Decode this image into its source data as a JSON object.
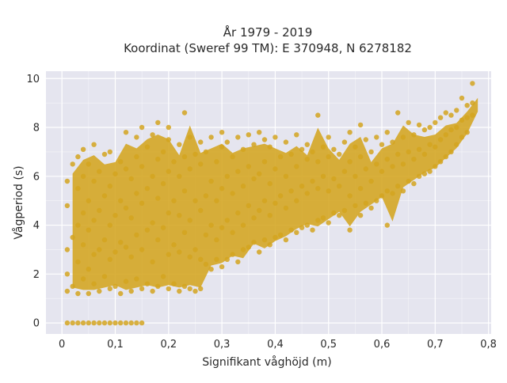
{
  "chart_data": {
    "type": "scatter",
    "title_lines": [
      "År 1979 - 2019",
      "Koordinat (Sweref 99 TM): E 370948, N 6278182"
    ],
    "xlabel": "Signifikant våghöjd (m)",
    "ylabel": "Vågperiod (s)",
    "xlim": [
      -0.03,
      0.805
    ],
    "ylim": [
      -0.45,
      10.3
    ],
    "x_ticks": [
      0,
      0.1,
      0.2,
      0.3,
      0.4,
      0.5,
      0.6,
      0.7,
      0.8
    ],
    "x_tick_labels": [
      "0",
      "0,1",
      "0,2",
      "0,3",
      "0,4",
      "0,5",
      "0,6",
      "0,7",
      "0,8"
    ],
    "y_ticks": [
      0,
      2,
      4,
      6,
      8,
      10
    ],
    "y_tick_labels": [
      "0",
      "2",
      "4",
      "6",
      "8",
      "10"
    ],
    "grid": true,
    "marker_color": "#D4A520",
    "plot_background": "#E5E5EF",
    "points": [
      [
        0.01,
        0.0
      ],
      [
        0.02,
        0.0
      ],
      [
        0.03,
        0.0
      ],
      [
        0.04,
        0.0
      ],
      [
        0.05,
        0.0
      ],
      [
        0.06,
        0.0
      ],
      [
        0.07,
        0.0
      ],
      [
        0.08,
        0.0
      ],
      [
        0.09,
        0.0
      ],
      [
        0.1,
        0.0
      ],
      [
        0.11,
        0.0
      ],
      [
        0.12,
        0.0
      ],
      [
        0.13,
        0.0
      ],
      [
        0.14,
        0.0
      ],
      [
        0.15,
        0.0
      ],
      [
        0.01,
        1.3
      ],
      [
        0.01,
        2.0
      ],
      [
        0.01,
        3.0
      ],
      [
        0.01,
        4.8
      ],
      [
        0.01,
        5.8
      ],
      [
        0.02,
        1.5
      ],
      [
        0.02,
        3.5
      ],
      [
        0.02,
        6.5
      ],
      [
        0.03,
        1.2
      ],
      [
        0.03,
        2.5
      ],
      [
        0.03,
        4.0
      ],
      [
        0.03,
        5.5
      ],
      [
        0.03,
        6.8
      ],
      [
        0.04,
        1.8
      ],
      [
        0.04,
        3.2
      ],
      [
        0.04,
        4.5
      ],
      [
        0.04,
        6.0
      ],
      [
        0.04,
        7.1
      ],
      [
        0.05,
        1.2
      ],
      [
        0.05,
        2.2
      ],
      [
        0.05,
        3.8
      ],
      [
        0.05,
        5.0
      ],
      [
        0.05,
        6.5
      ],
      [
        0.06,
        1.6
      ],
      [
        0.06,
        2.8
      ],
      [
        0.06,
        4.2
      ],
      [
        0.06,
        5.8
      ],
      [
        0.06,
        7.3
      ],
      [
        0.07,
        1.3
      ],
      [
        0.07,
        3.0
      ],
      [
        0.07,
        4.6
      ],
      [
        0.07,
        6.2
      ],
      [
        0.08,
        1.9
      ],
      [
        0.08,
        3.4
      ],
      [
        0.08,
        5.2
      ],
      [
        0.08,
        6.9
      ],
      [
        0.09,
        1.4
      ],
      [
        0.09,
        2.6
      ],
      [
        0.09,
        4.0
      ],
      [
        0.09,
        5.6
      ],
      [
        0.09,
        7.0
      ],
      [
        0.1,
        1.5
      ],
      [
        0.1,
        2.9
      ],
      [
        0.1,
        4.4
      ],
      [
        0.1,
        6.1
      ],
      [
        0.11,
        1.2
      ],
      [
        0.11,
        3.3
      ],
      [
        0.11,
        5.0
      ],
      [
        0.11,
        6.6
      ],
      [
        0.12,
        1.7
      ],
      [
        0.12,
        3.1
      ],
      [
        0.12,
        4.7
      ],
      [
        0.12,
        6.3
      ],
      [
        0.12,
        7.8
      ],
      [
        0.13,
        1.3
      ],
      [
        0.13,
        2.7
      ],
      [
        0.13,
        4.3
      ],
      [
        0.13,
        5.9
      ],
      [
        0.14,
        1.8
      ],
      [
        0.14,
        3.6
      ],
      [
        0.14,
        5.3
      ],
      [
        0.14,
        6.8
      ],
      [
        0.14,
        7.6
      ],
      [
        0.15,
        1.4
      ],
      [
        0.15,
        3.0
      ],
      [
        0.15,
        4.9
      ],
      [
        0.15,
        6.4
      ],
      [
        0.15,
        8.0
      ],
      [
        0.16,
        1.6
      ],
      [
        0.16,
        3.8
      ],
      [
        0.16,
        5.5
      ],
      [
        0.16,
        7.2
      ],
      [
        0.17,
        1.3
      ],
      [
        0.17,
        2.5
      ],
      [
        0.17,
        4.1
      ],
      [
        0.17,
        6.0
      ],
      [
        0.17,
        7.7
      ],
      [
        0.18,
        1.5
      ],
      [
        0.18,
        3.4
      ],
      [
        0.18,
        5.1
      ],
      [
        0.18,
        6.7
      ],
      [
        0.18,
        8.2
      ],
      [
        0.19,
        1.9
      ],
      [
        0.19,
        3.9
      ],
      [
        0.19,
        5.7
      ],
      [
        0.19,
        7.0
      ],
      [
        0.2,
        1.4
      ],
      [
        0.2,
        2.8
      ],
      [
        0.2,
        4.5
      ],
      [
        0.2,
        6.2
      ],
      [
        0.2,
        7.5
      ],
      [
        0.2,
        8.0
      ],
      [
        0.21,
        1.6
      ],
      [
        0.21,
        3.2
      ],
      [
        0.21,
        5.0
      ],
      [
        0.21,
        6.6
      ],
      [
        0.22,
        1.3
      ],
      [
        0.22,
        2.9
      ],
      [
        0.22,
        4.4
      ],
      [
        0.22,
        6.0
      ],
      [
        0.22,
        7.3
      ],
      [
        0.23,
        1.5
      ],
      [
        0.23,
        3.7
      ],
      [
        0.23,
        5.4
      ],
      [
        0.23,
        6.8
      ],
      [
        0.23,
        8.6
      ],
      [
        0.24,
        1.4
      ],
      [
        0.24,
        2.7
      ],
      [
        0.24,
        4.2
      ],
      [
        0.24,
        6.3
      ],
      [
        0.24,
        7.6
      ],
      [
        0.25,
        1.3
      ],
      [
        0.25,
        3.0
      ],
      [
        0.25,
        5.0
      ],
      [
        0.25,
        6.9
      ],
      [
        0.26,
        1.4
      ],
      [
        0.26,
        2.6
      ],
      [
        0.26,
        4.6
      ],
      [
        0.26,
        6.5
      ],
      [
        0.26,
        7.4
      ],
      [
        0.27,
        2.4
      ],
      [
        0.27,
        3.6
      ],
      [
        0.27,
        5.2
      ],
      [
        0.27,
        7.0
      ],
      [
        0.28,
        2.2
      ],
      [
        0.28,
        4.0
      ],
      [
        0.28,
        5.8
      ],
      [
        0.28,
        7.6
      ],
      [
        0.29,
        2.6
      ],
      [
        0.29,
        3.4
      ],
      [
        0.29,
        5.0
      ],
      [
        0.29,
        6.6
      ],
      [
        0.3,
        2.3
      ],
      [
        0.3,
        3.9
      ],
      [
        0.3,
        5.5
      ],
      [
        0.3,
        7.2
      ],
      [
        0.3,
        7.8
      ],
      [
        0.31,
        2.6
      ],
      [
        0.31,
        4.2
      ],
      [
        0.31,
        6.0
      ],
      [
        0.31,
        7.4
      ],
      [
        0.32,
        2.8
      ],
      [
        0.32,
        3.7
      ],
      [
        0.32,
        5.3
      ],
      [
        0.32,
        6.8
      ],
      [
        0.33,
        2.5
      ],
      [
        0.33,
        4.5
      ],
      [
        0.33,
        6.2
      ],
      [
        0.33,
        7.6
      ],
      [
        0.34,
        3.0
      ],
      [
        0.34,
        4.0
      ],
      [
        0.34,
        5.6
      ],
      [
        0.34,
        7.1
      ],
      [
        0.35,
        3.1
      ],
      [
        0.35,
        4.8
      ],
      [
        0.35,
        6.4
      ],
      [
        0.35,
        7.7
      ],
      [
        0.36,
        3.3
      ],
      [
        0.36,
        4.3
      ],
      [
        0.36,
        5.9
      ],
      [
        0.36,
        7.3
      ],
      [
        0.37,
        2.9
      ],
      [
        0.37,
        4.6
      ],
      [
        0.37,
        6.1
      ],
      [
        0.37,
        7.8
      ],
      [
        0.38,
        3.4
      ],
      [
        0.38,
        5.0
      ],
      [
        0.38,
        6.6
      ],
      [
        0.38,
        7.5
      ],
      [
        0.39,
        3.2
      ],
      [
        0.39,
        4.4
      ],
      [
        0.39,
        5.7
      ],
      [
        0.39,
        7.2
      ],
      [
        0.4,
        3.5
      ],
      [
        0.4,
        4.9
      ],
      [
        0.4,
        6.3
      ],
      [
        0.4,
        7.6
      ],
      [
        0.41,
        3.6
      ],
      [
        0.41,
        5.2
      ],
      [
        0.41,
        6.8
      ],
      [
        0.42,
        3.4
      ],
      [
        0.42,
        4.7
      ],
      [
        0.42,
        6.0
      ],
      [
        0.42,
        7.4
      ],
      [
        0.43,
        3.8
      ],
      [
        0.43,
        5.4
      ],
      [
        0.43,
        6.9
      ],
      [
        0.44,
        3.7
      ],
      [
        0.44,
        5.0
      ],
      [
        0.44,
        6.4
      ],
      [
        0.44,
        7.7
      ],
      [
        0.45,
        3.9
      ],
      [
        0.45,
        5.6
      ],
      [
        0.45,
        7.1
      ],
      [
        0.46,
        4.0
      ],
      [
        0.46,
        5.3
      ],
      [
        0.46,
        6.7
      ],
      [
        0.46,
        7.3
      ],
      [
        0.47,
        3.8
      ],
      [
        0.47,
        5.8
      ],
      [
        0.47,
        7.0
      ],
      [
        0.48,
        4.2
      ],
      [
        0.48,
        5.5
      ],
      [
        0.48,
        6.6
      ],
      [
        0.48,
        8.5
      ],
      [
        0.49,
        4.3
      ],
      [
        0.49,
        6.0
      ],
      [
        0.49,
        7.2
      ],
      [
        0.5,
        4.1
      ],
      [
        0.5,
        5.4
      ],
      [
        0.5,
        6.8
      ],
      [
        0.5,
        7.6
      ],
      [
        0.51,
        4.5
      ],
      [
        0.51,
        5.9
      ],
      [
        0.51,
        7.1
      ],
      [
        0.52,
        4.4
      ],
      [
        0.52,
        5.6
      ],
      [
        0.52,
        6.9
      ],
      [
        0.53,
        4.6
      ],
      [
        0.53,
        6.2
      ],
      [
        0.53,
        7.4
      ],
      [
        0.54,
        3.8
      ],
      [
        0.54,
        5.2
      ],
      [
        0.54,
        6.6
      ],
      [
        0.54,
        7.8
      ],
      [
        0.55,
        4.8
      ],
      [
        0.55,
        6.0
      ],
      [
        0.55,
        7.2
      ],
      [
        0.56,
        4.4
      ],
      [
        0.56,
        5.5
      ],
      [
        0.56,
        6.8
      ],
      [
        0.56,
        8.1
      ],
      [
        0.57,
        4.9
      ],
      [
        0.57,
        6.3
      ],
      [
        0.57,
        7.5
      ],
      [
        0.58,
        4.7
      ],
      [
        0.58,
        5.8
      ],
      [
        0.58,
        7.0
      ],
      [
        0.59,
        5.0
      ],
      [
        0.59,
        6.5
      ],
      [
        0.59,
        7.6
      ],
      [
        0.6,
        5.2
      ],
      [
        0.6,
        6.2
      ],
      [
        0.6,
        7.3
      ],
      [
        0.61,
        4.0
      ],
      [
        0.61,
        5.4
      ],
      [
        0.61,
        6.7
      ],
      [
        0.61,
        7.8
      ],
      [
        0.62,
        5.3
      ],
      [
        0.62,
        6.4
      ],
      [
        0.62,
        7.4
      ],
      [
        0.63,
        5.6
      ],
      [
        0.63,
        6.9
      ],
      [
        0.63,
        8.6
      ],
      [
        0.64,
        5.4
      ],
      [
        0.64,
        6.5
      ],
      [
        0.64,
        7.6
      ],
      [
        0.65,
        5.8
      ],
      [
        0.65,
        7.0
      ],
      [
        0.65,
        8.2
      ],
      [
        0.66,
        5.7
      ],
      [
        0.66,
        6.7
      ],
      [
        0.66,
        7.7
      ],
      [
        0.67,
        6.0
      ],
      [
        0.67,
        7.1
      ],
      [
        0.67,
        8.1
      ],
      [
        0.68,
        6.1
      ],
      [
        0.68,
        6.9
      ],
      [
        0.68,
        7.9
      ],
      [
        0.69,
        6.2
      ],
      [
        0.69,
        7.3
      ],
      [
        0.69,
        8.0
      ],
      [
        0.7,
        6.4
      ],
      [
        0.7,
        7.2
      ],
      [
        0.7,
        8.2
      ],
      [
        0.71,
        6.6
      ],
      [
        0.71,
        7.5
      ],
      [
        0.71,
        8.4
      ],
      [
        0.72,
        6.8
      ],
      [
        0.72,
        7.7
      ],
      [
        0.72,
        8.6
      ],
      [
        0.73,
        7.0
      ],
      [
        0.73,
        7.9
      ],
      [
        0.73,
        8.5
      ],
      [
        0.74,
        7.3
      ],
      [
        0.74,
        8.0
      ],
      [
        0.74,
        8.7
      ],
      [
        0.75,
        7.6
      ],
      [
        0.75,
        8.3
      ],
      [
        0.75,
        9.2
      ],
      [
        0.76,
        7.8
      ],
      [
        0.76,
        8.4
      ],
      [
        0.76,
        8.9
      ],
      [
        0.77,
        8.5
      ],
      [
        0.77,
        9.0
      ],
      [
        0.77,
        9.8
      ]
    ]
  }
}
